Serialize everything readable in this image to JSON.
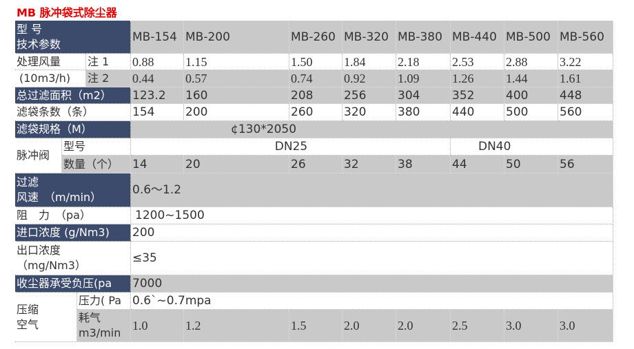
{
  "title": "MB 脉冲袋式除尘器",
  "header": {
    "label_1": "型 号",
    "label_2": "技术参数",
    "models": [
      "MB-154",
      "MB-200",
      "MB-260",
      "MB-320",
      "MB-380",
      "MB-440",
      "MB-500",
      "MB-560"
    ]
  },
  "airflow": {
    "label_1": "处理风量",
    "label_2": "(10m3/h)",
    "note1": {
      "label": "注 1",
      "values": [
        "0.88",
        "1.15",
        "1.50",
        "1.84",
        "2.18",
        "2.53",
        "2.88",
        "3.22"
      ]
    },
    "note2": {
      "label": "注 2",
      "values": [
        "0.44",
        "0.57",
        "0.74",
        "0.92",
        "1.09",
        "1.26",
        "1.44",
        "1.61"
      ]
    }
  },
  "filter_area": {
    "label": "总过滤面积（m2）",
    "values": [
      "123.2",
      "160",
      "208",
      "256",
      "304",
      "352",
      "400",
      "448"
    ]
  },
  "bag_count": {
    "label": "滤袋条数（条）",
    "values": [
      "154",
      "200",
      "260",
      "320",
      "380",
      "440",
      "500",
      "560"
    ]
  },
  "bag_spec": {
    "label": "滤袋规格（M）",
    "value": "¢130*2050"
  },
  "pulse_valve": {
    "label": "脉冲阀",
    "model_label": "型号",
    "models": [
      "DN25",
      "DN40"
    ],
    "qty_label": "数量（个）",
    "qty": [
      "14",
      "20",
      "26",
      "32",
      "38",
      "44",
      "50",
      "56"
    ]
  },
  "filter_speed": {
    "label_1": "过滤",
    "label_2": "风速　（m/min）",
    "value": "0.6～1.2"
  },
  "resistance": {
    "label": "阻　力　（pa）",
    "value": "1200~1500"
  },
  "inlet": {
    "label": "进口浓度 (g/Nm3)",
    "value": "200"
  },
  "outlet": {
    "label_1": "出口浓度",
    "label_2": "（mg/Nm3）",
    "value": "≤35"
  },
  "negative_pressure": {
    "label": "收尘器承受负压(pa",
    "value": "7000"
  },
  "compressed_air": {
    "label_1": "压缩",
    "label_2": "空气",
    "pressure_label": "压力( Pa",
    "pressure": "0.6`~0.7mpa",
    "consumption_label_1": "耗气",
    "consumption_label_2": "m3/min",
    "consumption": [
      "1.0",
      "1.2",
      "1.5",
      "2.0",
      "2.0",
      "2.5",
      "3.0",
      "3.0"
    ]
  }
}
